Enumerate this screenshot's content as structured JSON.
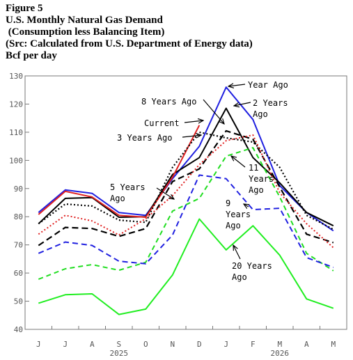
{
  "header": {
    "figure": "Figure 5",
    "title": "U.S. Monthly Natural Gas Demand",
    "subtitle": " (Consumption less Balancing Item)",
    "source": "(Src: Calculated from U.S. Department of Energy data)",
    "units": "Bcf per day"
  },
  "chart_data": {
    "type": "line",
    "title": "U.S. Monthly Natural Gas Demand",
    "ylabel": "Bcf per day",
    "ylim": [
      40,
      130
    ],
    "yticks": [
      40,
      50,
      60,
      70,
      80,
      90,
      100,
      110,
      120,
      130
    ],
    "categories": [
      "J",
      "J",
      "A",
      "S",
      "O",
      "N",
      "D",
      "J",
      "F",
      "M",
      "A",
      "M"
    ],
    "year_labels": [
      {
        "text": "2025",
        "at": 3
      },
      {
        "text": "2026",
        "at": 9
      }
    ],
    "grid": false,
    "series": [
      {
        "name": "Year Ago",
        "color": "#2020e0",
        "dash": "",
        "width": 2,
        "values": [
          81.5,
          89.5,
          88.3,
          81.5,
          80.5,
          93.5,
          105,
          126,
          114.5,
          91,
          81.5,
          75
        ]
      },
      {
        "name": "2 Years Ago",
        "color": "#000000",
        "dash": "",
        "width": 2,
        "values": [
          77.5,
          86.5,
          86.8,
          79.8,
          80,
          95,
          101,
          118.5,
          101,
          92,
          81.5,
          76.8
        ]
      },
      {
        "name": "Current",
        "color": "#e02020",
        "dash": "",
        "width": 2,
        "values": [
          80.8,
          89,
          87,
          80.5,
          79.8,
          94,
          112.5,
          null,
          null,
          null,
          null,
          null
        ]
      },
      {
        "name": "3 Years Ago",
        "color": "#000000",
        "dash": "2,3",
        "width": 2.2,
        "values": [
          77.5,
          84.5,
          83.8,
          78.8,
          78,
          97.5,
          110,
          108,
          106.5,
          97.5,
          80.5,
          75.5
        ]
      },
      {
        "name": "8 Years Ago",
        "color": "#000000",
        "dash": "9,5",
        "width": 2.2,
        "values": [
          69.8,
          76.2,
          75.8,
          73,
          75.8,
          92.5,
          97,
          110.5,
          107.5,
          90.5,
          73.8,
          70.8
        ]
      },
      {
        "name": "5 Years Ago",
        "color": "#e02020",
        "dash": "2,3",
        "width": 2,
        "values": [
          73.8,
          80.5,
          78.5,
          73.5,
          79.3,
          87.5,
          98.5,
          107,
          109,
          88.5,
          77.5,
          69
        ]
      },
      {
        "name": "11 Years Ago",
        "color": "#20dd20",
        "dash": "7,5",
        "width": 2,
        "values": [
          57.8,
          61.5,
          63,
          61,
          63.8,
          82,
          86.5,
          101.5,
          104.5,
          87,
          67,
          60.8
        ]
      },
      {
        "name": "9 Years Ago",
        "color": "#2020e0",
        "dash": "8,5",
        "width": 2,
        "values": [
          67,
          71,
          69.8,
          64.2,
          63.3,
          73.5,
          94.8,
          93.5,
          82.5,
          83,
          65.5,
          62
        ]
      },
      {
        "name": "20 Years Ago",
        "color": "#20ee20",
        "dash": "",
        "width": 2,
        "values": [
          49.3,
          52.3,
          52.6,
          45.3,
          47.2,
          59.3,
          79.2,
          68.2,
          76.8,
          66.3,
          50.8,
          47.5
        ]
      }
    ],
    "annotations": [
      {
        "lines": [
          "Year Ago"
        ]
      },
      {
        "lines": [
          "8 Years Ago"
        ]
      },
      {
        "lines": [
          "2 Years",
          "Ago"
        ]
      },
      {
        "lines": [
          "Current"
        ]
      },
      {
        "lines": [
          "3 Years Ago"
        ]
      },
      {
        "lines": [
          "5 Years",
          "Ago"
        ]
      },
      {
        "lines": [
          "11",
          "Years",
          "Ago"
        ]
      },
      {
        "lines": [
          "9",
          "Years",
          "Ago"
        ]
      },
      {
        "lines": [
          "20 Years",
          "Ago"
        ]
      }
    ]
  }
}
